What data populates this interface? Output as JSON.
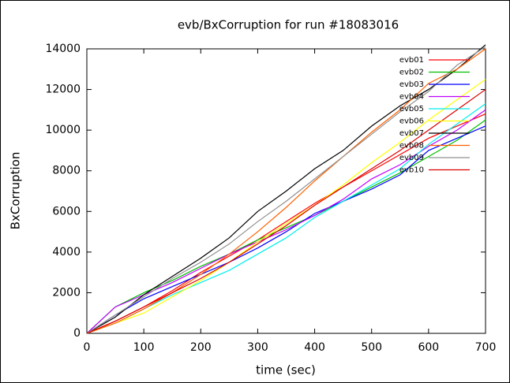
{
  "chart_data": {
    "type": "line",
    "title": "evb/BxCorruption for run #18083016",
    "x_label": "time (sec)",
    "y_label": "BxCorruption",
    "x": [
      0,
      50,
      100,
      150,
      200,
      250,
      300,
      350,
      400,
      450,
      500,
      550,
      600,
      650,
      700
    ],
    "series": [
      {
        "name": "evb01",
        "color": "#ff0000",
        "values": [
          0,
          600,
          1300,
          2100,
          3000,
          3800,
          4600,
          5500,
          6400,
          7200,
          8000,
          8800,
          9600,
          10200,
          10800
        ]
      },
      {
        "name": "evb02",
        "color": "#00c000",
        "values": [
          0,
          1300,
          2000,
          2600,
          3300,
          3900,
          4600,
          5200,
          5800,
          6500,
          7200,
          7900,
          8700,
          9500,
          10500
        ]
      },
      {
        "name": "evb03",
        "color": "#0000ff",
        "values": [
          0,
          900,
          1700,
          2300,
          2900,
          3500,
          4200,
          5000,
          5900,
          6500,
          7100,
          7800,
          9000,
          9600,
          10200
        ]
      },
      {
        "name": "evb04",
        "color": "#c000ff",
        "values": [
          0,
          1300,
          1900,
          2500,
          3200,
          3900,
          4500,
          5100,
          5800,
          6600,
          7600,
          8300,
          9200,
          10000,
          11000
        ]
      },
      {
        "name": "evb05",
        "color": "#00eeee",
        "values": [
          0,
          500,
          1200,
          1900,
          2500,
          3100,
          3900,
          4700,
          5700,
          6500,
          7300,
          8100,
          9300,
          10300,
          11300
        ]
      },
      {
        "name": "evb06",
        "color": "#ffff00",
        "values": [
          0,
          500,
          1000,
          1800,
          2600,
          3500,
          4500,
          5400,
          6300,
          7300,
          8400,
          9400,
          10500,
          11500,
          12500
        ]
      },
      {
        "name": "evb07",
        "color": "#000000",
        "values": [
          0,
          800,
          1900,
          2800,
          3700,
          4700,
          6000,
          7000,
          8100,
          9000,
          10200,
          11200,
          12000,
          13000,
          14200
        ]
      },
      {
        "name": "evb08",
        "color": "#ff6000",
        "values": [
          0,
          500,
          1200,
          2000,
          2900,
          3900,
          5000,
          6200,
          7500,
          8700,
          9900,
          11000,
          12300,
          13000,
          14000
        ]
      },
      {
        "name": "evb09",
        "color": "#909090",
        "values": [
          0,
          900,
          1800,
          2700,
          3500,
          4400,
          5500,
          6500,
          7600,
          8700,
          9800,
          10900,
          11900,
          13200,
          14100
        ]
      },
      {
        "name": "evb10",
        "color": "#dd0000",
        "values": [
          0,
          600,
          1300,
          2000,
          2700,
          3500,
          4400,
          5300,
          6300,
          7200,
          8100,
          9000,
          10000,
          11000,
          12000
        ]
      }
    ],
    "xlim": [
      0,
      700
    ],
    "xticks": [
      0,
      100,
      200,
      300,
      400,
      500,
      600,
      700
    ],
    "ylim": [
      0,
      14000
    ],
    "yticks": [
      0,
      2000,
      4000,
      6000,
      8000,
      10000,
      12000,
      14000
    ],
    "grid": false,
    "legend": "top-right"
  }
}
